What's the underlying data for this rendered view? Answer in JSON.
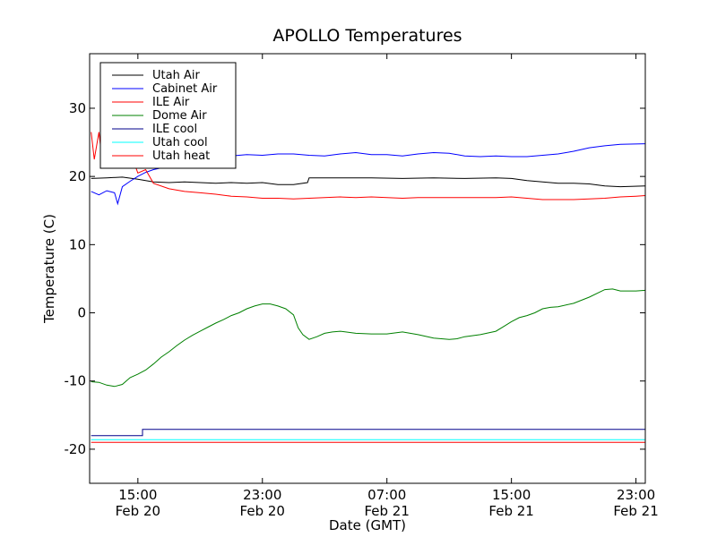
{
  "chart_data": {
    "type": "line",
    "title": "APOLLO Temperatures",
    "xlabel": "Date (GMT)",
    "ylabel": "Temperature (C)",
    "x_unit": "hours since Feb 20 00:00 GMT",
    "xlim": [
      11.9,
      47.6
    ],
    "ylim": [
      -25,
      38
    ],
    "grid": false,
    "legend_position": "upper-left",
    "x_ticks": [
      {
        "x": 15,
        "time": "15:00",
        "date": "Feb 20"
      },
      {
        "x": 23,
        "time": "23:00",
        "date": "Feb 20"
      },
      {
        "x": 31,
        "time": "07:00",
        "date": "Feb 21"
      },
      {
        "x": 39,
        "time": "15:00",
        "date": "Feb 21"
      },
      {
        "x": 47,
        "time": "23:00",
        "date": "Feb 21"
      }
    ],
    "y_ticks": [
      {
        "y": 30,
        "label": "30"
      },
      {
        "y": 20,
        "label": "20"
      },
      {
        "y": 10,
        "label": "10"
      },
      {
        "y": 0,
        "label": "0"
      },
      {
        "y": -10,
        "label": "-10"
      },
      {
        "y": -20,
        "label": "-20"
      }
    ],
    "series": [
      {
        "name": "Utah Air",
        "color": "#000000",
        "points": [
          [
            12.0,
            19.7
          ],
          [
            13.0,
            19.8
          ],
          [
            14.0,
            19.9
          ],
          [
            15.0,
            19.6
          ],
          [
            16.0,
            19.2
          ],
          [
            17.0,
            19.1
          ],
          [
            18.0,
            19.2
          ],
          [
            19.0,
            19.1
          ],
          [
            20.0,
            19.0
          ],
          [
            21.0,
            19.1
          ],
          [
            22.0,
            19.0
          ],
          [
            23.0,
            19.1
          ],
          [
            24.0,
            18.8
          ],
          [
            25.0,
            18.8
          ],
          [
            25.9,
            19.1
          ],
          [
            26.0,
            19.8
          ],
          [
            28.0,
            19.8
          ],
          [
            30.0,
            19.8
          ],
          [
            32.0,
            19.7
          ],
          [
            34.0,
            19.8
          ],
          [
            36.0,
            19.7
          ],
          [
            38.0,
            19.8
          ],
          [
            39.0,
            19.7
          ],
          [
            40.0,
            19.4
          ],
          [
            41.0,
            19.2
          ],
          [
            42.0,
            19.0
          ],
          [
            43.0,
            19.0
          ],
          [
            44.0,
            18.9
          ],
          [
            45.0,
            18.6
          ],
          [
            46.0,
            18.5
          ],
          [
            47.6,
            18.6
          ]
        ]
      },
      {
        "name": "Cabinet Air",
        "color": "#0000ff",
        "points": [
          [
            12.0,
            17.8
          ],
          [
            12.5,
            17.3
          ],
          [
            13.0,
            17.9
          ],
          [
            13.5,
            17.6
          ],
          [
            13.7,
            16.0
          ],
          [
            14.0,
            18.5
          ],
          [
            14.5,
            19.3
          ],
          [
            15.0,
            20.0
          ],
          [
            15.5,
            20.6
          ],
          [
            16.0,
            21.0
          ],
          [
            17.0,
            21.5
          ],
          [
            18.0,
            22.0
          ],
          [
            19.0,
            22.5
          ],
          [
            20.0,
            22.7
          ],
          [
            21.0,
            23.0
          ],
          [
            22.0,
            23.2
          ],
          [
            23.0,
            23.1
          ],
          [
            24.0,
            23.3
          ],
          [
            25.0,
            23.3
          ],
          [
            26.0,
            23.1
          ],
          [
            27.0,
            23.0
          ],
          [
            28.0,
            23.3
          ],
          [
            29.0,
            23.5
          ],
          [
            30.0,
            23.2
          ],
          [
            31.0,
            23.2
          ],
          [
            32.0,
            23.0
          ],
          [
            33.0,
            23.3
          ],
          [
            34.0,
            23.5
          ],
          [
            35.0,
            23.4
          ],
          [
            36.0,
            23.0
          ],
          [
            37.0,
            22.9
          ],
          [
            38.0,
            23.0
          ],
          [
            39.0,
            22.9
          ],
          [
            40.0,
            22.9
          ],
          [
            41.0,
            23.1
          ],
          [
            42.0,
            23.3
          ],
          [
            43.0,
            23.7
          ],
          [
            44.0,
            24.2
          ],
          [
            45.0,
            24.5
          ],
          [
            46.0,
            24.7
          ],
          [
            47.6,
            24.8
          ]
        ]
      },
      {
        "name": "ILE Air",
        "color": "#ff0000",
        "points": [
          [
            12.0,
            26.5
          ],
          [
            12.2,
            22.5
          ],
          [
            12.5,
            26.5
          ],
          [
            12.7,
            22.5
          ],
          [
            13.0,
            26.0
          ],
          [
            13.2,
            22.0
          ],
          [
            13.5,
            25.5
          ],
          [
            13.7,
            22.0
          ],
          [
            14.0,
            24.5
          ],
          [
            14.3,
            21.5
          ],
          [
            14.6,
            23.0
          ],
          [
            15.0,
            20.5
          ],
          [
            15.5,
            21.0
          ],
          [
            16.0,
            19.0
          ],
          [
            17.0,
            18.2
          ],
          [
            18.0,
            17.8
          ],
          [
            19.0,
            17.6
          ],
          [
            20.0,
            17.4
          ],
          [
            21.0,
            17.1
          ],
          [
            22.0,
            17.0
          ],
          [
            23.0,
            16.8
          ],
          [
            24.0,
            16.8
          ],
          [
            25.0,
            16.7
          ],
          [
            26.0,
            16.8
          ],
          [
            27.0,
            16.9
          ],
          [
            28.0,
            17.0
          ],
          [
            29.0,
            16.9
          ],
          [
            30.0,
            17.0
          ],
          [
            31.0,
            16.9
          ],
          [
            32.0,
            16.8
          ],
          [
            33.0,
            16.9
          ],
          [
            34.0,
            16.9
          ],
          [
            35.0,
            16.9
          ],
          [
            36.0,
            16.9
          ],
          [
            37.0,
            16.9
          ],
          [
            38.0,
            16.9
          ],
          [
            39.0,
            17.0
          ],
          [
            40.0,
            16.8
          ],
          [
            41.0,
            16.6
          ],
          [
            42.0,
            16.6
          ],
          [
            43.0,
            16.6
          ],
          [
            44.0,
            16.7
          ],
          [
            45.0,
            16.8
          ],
          [
            46.0,
            17.0
          ],
          [
            47.0,
            17.1
          ],
          [
            47.6,
            17.2
          ]
        ]
      },
      {
        "name": "Dome Air",
        "color": "#008000",
        "points": [
          [
            12.0,
            -10.1
          ],
          [
            12.5,
            -10.2
          ],
          [
            13.0,
            -10.6
          ],
          [
            13.5,
            -10.8
          ],
          [
            14.0,
            -10.5
          ],
          [
            14.5,
            -9.5
          ],
          [
            15.0,
            -9.0
          ],
          [
            15.5,
            -8.4
          ],
          [
            16.0,
            -7.5
          ],
          [
            16.5,
            -6.5
          ],
          [
            17.0,
            -5.7
          ],
          [
            17.5,
            -4.8
          ],
          [
            18.0,
            -4.0
          ],
          [
            18.5,
            -3.3
          ],
          [
            19.0,
            -2.7
          ],
          [
            19.5,
            -2.1
          ],
          [
            20.0,
            -1.5
          ],
          [
            20.5,
            -1.0
          ],
          [
            21.0,
            -0.4
          ],
          [
            21.5,
            0.0
          ],
          [
            22.0,
            0.6
          ],
          [
            22.5,
            1.0
          ],
          [
            23.0,
            1.3
          ],
          [
            23.5,
            1.3
          ],
          [
            24.0,
            1.0
          ],
          [
            24.5,
            0.6
          ],
          [
            25.0,
            -0.3
          ],
          [
            25.3,
            -2.2
          ],
          [
            25.6,
            -3.2
          ],
          [
            26.0,
            -3.9
          ],
          [
            26.5,
            -3.5
          ],
          [
            27.0,
            -3.0
          ],
          [
            27.5,
            -2.8
          ],
          [
            28.0,
            -2.7
          ],
          [
            29.0,
            -3.0
          ],
          [
            30.0,
            -3.1
          ],
          [
            31.0,
            -3.1
          ],
          [
            32.0,
            -2.8
          ],
          [
            33.0,
            -3.2
          ],
          [
            34.0,
            -3.7
          ],
          [
            35.0,
            -3.9
          ],
          [
            35.5,
            -3.8
          ],
          [
            36.0,
            -3.5
          ],
          [
            37.0,
            -3.2
          ],
          [
            38.0,
            -2.7
          ],
          [
            38.5,
            -2.0
          ],
          [
            39.0,
            -1.3
          ],
          [
            39.5,
            -0.7
          ],
          [
            40.0,
            -0.4
          ],
          [
            40.5,
            0.0
          ],
          [
            41.0,
            0.6
          ],
          [
            41.5,
            0.8
          ],
          [
            42.0,
            0.9
          ],
          [
            43.0,
            1.4
          ],
          [
            44.0,
            2.3
          ],
          [
            45.0,
            3.4
          ],
          [
            45.5,
            3.5
          ],
          [
            46.0,
            3.2
          ],
          [
            47.0,
            3.2
          ],
          [
            47.6,
            3.3
          ]
        ]
      },
      {
        "name": "ILE cool",
        "color": "#00008b",
        "points": [
          [
            12.0,
            -18.0
          ],
          [
            15.3,
            -18.0
          ],
          [
            15.3,
            -17.1
          ],
          [
            47.6,
            -17.1
          ]
        ]
      },
      {
        "name": "Utah cool",
        "color": "#00ffff",
        "points": [
          [
            12.0,
            -18.6
          ],
          [
            47.6,
            -18.6
          ]
        ]
      },
      {
        "name": "Utah heat",
        "color": "#ff0000",
        "points": [
          [
            12.0,
            -19.0
          ],
          [
            47.6,
            -19.0
          ]
        ]
      }
    ]
  }
}
